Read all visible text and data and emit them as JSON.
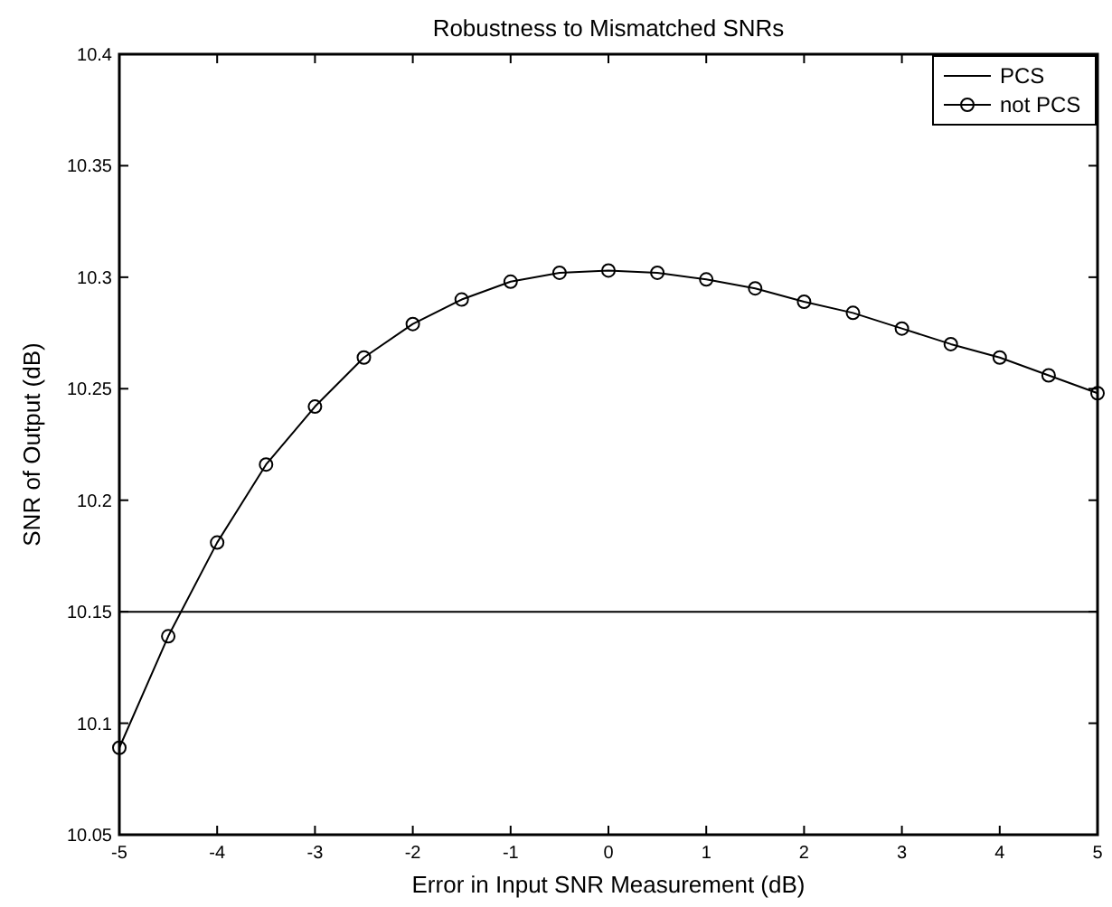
{
  "chart_data": {
    "type": "line",
    "title": "Robustness to Mismatched SNRs",
    "xlabel": "Error in Input SNR Measurement (dB)",
    "ylabel": "SNR of Output (dB)",
    "xlim": [
      -5,
      5
    ],
    "xticks": [
      -5,
      -4,
      -3,
      -2,
      -1,
      0,
      1,
      2,
      3,
      4,
      5
    ],
    "ylim": [
      10.05,
      10.4
    ],
    "yticks": [
      10.05,
      10.1,
      10.15,
      10.2,
      10.25,
      10.3,
      10.35,
      10.4
    ],
    "grid": false,
    "legend": "top right",
    "series": [
      {
        "name": "PCS",
        "color": "#000000",
        "marker": "none",
        "x": [
          -5,
          5
        ],
        "values": [
          10.15,
          10.15
        ]
      },
      {
        "name": "not PCS",
        "color": "#000000",
        "marker": "circle",
        "x": [
          -5,
          -4.5,
          -4,
          -3.5,
          -3,
          -2.5,
          -2,
          -1.5,
          -1,
          -0.5,
          0,
          0.5,
          1,
          1.5,
          2,
          2.5,
          3,
          3.5,
          4,
          4.5,
          5
        ],
        "values": [
          10.089,
          10.139,
          10.181,
          10.216,
          10.242,
          10.264,
          10.279,
          10.29,
          10.298,
          10.302,
          10.303,
          10.302,
          10.299,
          10.295,
          10.289,
          10.284,
          10.277,
          10.27,
          10.264,
          10.256,
          10.248
        ]
      }
    ]
  }
}
